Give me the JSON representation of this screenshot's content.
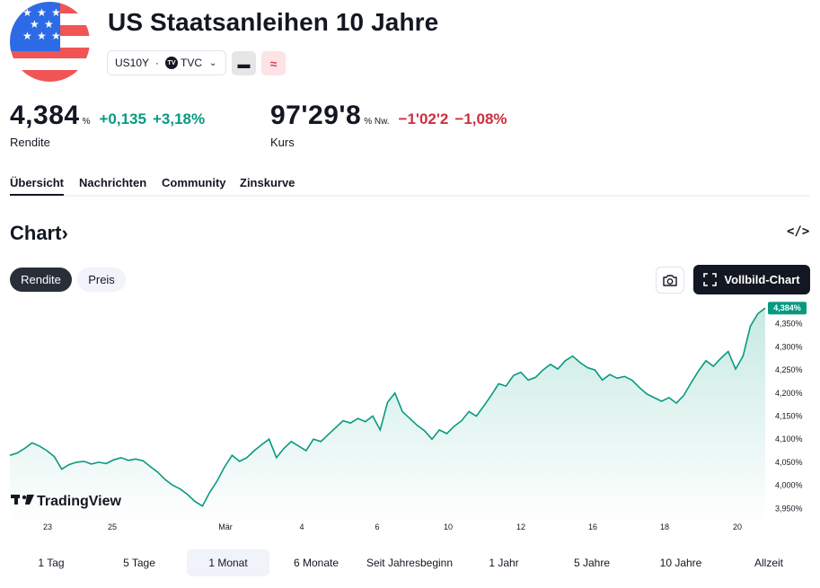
{
  "header": {
    "title": "US Staatsanleihen 10 Jahre",
    "symbol": "US10Y",
    "exchange": "TVC",
    "badge_gray": "▬",
    "badge_pink": "≈"
  },
  "quotes": {
    "yield": {
      "value": "4,384",
      "unit": "%",
      "change_abs": "+0,135",
      "change_pct": "+3,18%",
      "label": "Rendite"
    },
    "price": {
      "value": "97'29'8",
      "unit": "% Nw.",
      "change_abs": "−1'02'2",
      "change_pct": "−1,08%",
      "label": "Kurs"
    }
  },
  "tabs": [
    "Übersicht",
    "Nachrichten",
    "Community",
    "Zinskurve"
  ],
  "chart_section": {
    "heading": "Chart",
    "heading_arrow": "›",
    "embed_label": "</>",
    "mode_buttons": [
      "Rendite",
      "Preis"
    ],
    "fullscreen_label": "Vollbild-Chart",
    "watermark": "TradingView"
  },
  "colors": {
    "positive": "#089981",
    "negative": "#cc2f3c",
    "line": "#089981",
    "area_top": "#c7eae3",
    "area_bottom": "#ffffff"
  },
  "chart_data": {
    "type": "area",
    "title": "",
    "xlabel": "",
    "ylabel": "",
    "ylim": [
      3.935,
      4.4
    ],
    "y_ticks": [
      "4,350%",
      "4,300%",
      "4,250%",
      "4,200%",
      "4,150%",
      "4,100%",
      "4,050%",
      "4,000%",
      "3,950%"
    ],
    "y_tick_values": [
      4.35,
      4.3,
      4.25,
      4.2,
      4.15,
      4.1,
      4.05,
      4.0,
      3.95
    ],
    "x_ticks": [
      "23",
      "25",
      "Mär",
      "4",
      "6",
      "10",
      "12",
      "16",
      "18",
      "20"
    ],
    "last_value_label": "4,384%",
    "last_value": 4.384,
    "series": [
      {
        "values": [
          4.065,
          4.07,
          4.08,
          4.092,
          4.085,
          4.075,
          4.062,
          4.035,
          4.045,
          4.05,
          4.052,
          4.046,
          4.05,
          4.047,
          4.055,
          4.06,
          4.054,
          4.057,
          4.053,
          4.04,
          4.028,
          4.012,
          4.0,
          3.992,
          3.98,
          3.965,
          3.955,
          3.985,
          4.01,
          4.04,
          4.065,
          4.052,
          4.06,
          4.075,
          4.088,
          4.1,
          4.06,
          4.08,
          4.095,
          4.085,
          4.075,
          4.1,
          4.095,
          4.11,
          4.125,
          4.14,
          4.135,
          4.145,
          4.138,
          4.15,
          4.12,
          4.18,
          4.2,
          4.16,
          4.145,
          4.13,
          4.118,
          4.1,
          4.12,
          4.112,
          4.128,
          4.14,
          4.16,
          4.15,
          4.172,
          4.195,
          4.22,
          4.215,
          4.238,
          4.245,
          4.228,
          4.234,
          4.25,
          4.262,
          4.252,
          4.27,
          4.28,
          4.266,
          4.255,
          4.25,
          4.228,
          4.24,
          4.232,
          4.236,
          4.228,
          4.212,
          4.198,
          4.19,
          4.182,
          4.19,
          4.178,
          4.195,
          4.222,
          4.248,
          4.27,
          4.258,
          4.275,
          4.29,
          4.252,
          4.28,
          4.345,
          4.372,
          4.384
        ]
      }
    ]
  },
  "ranges": {
    "items": [
      "1 Tag",
      "5 Tage",
      "1 Monat",
      "6 Monate",
      "Seit Jahresbeginn",
      "1 Jahr",
      "5 Jahre",
      "10 Jahre",
      "Allzeit"
    ],
    "active": "1 Monat"
  }
}
